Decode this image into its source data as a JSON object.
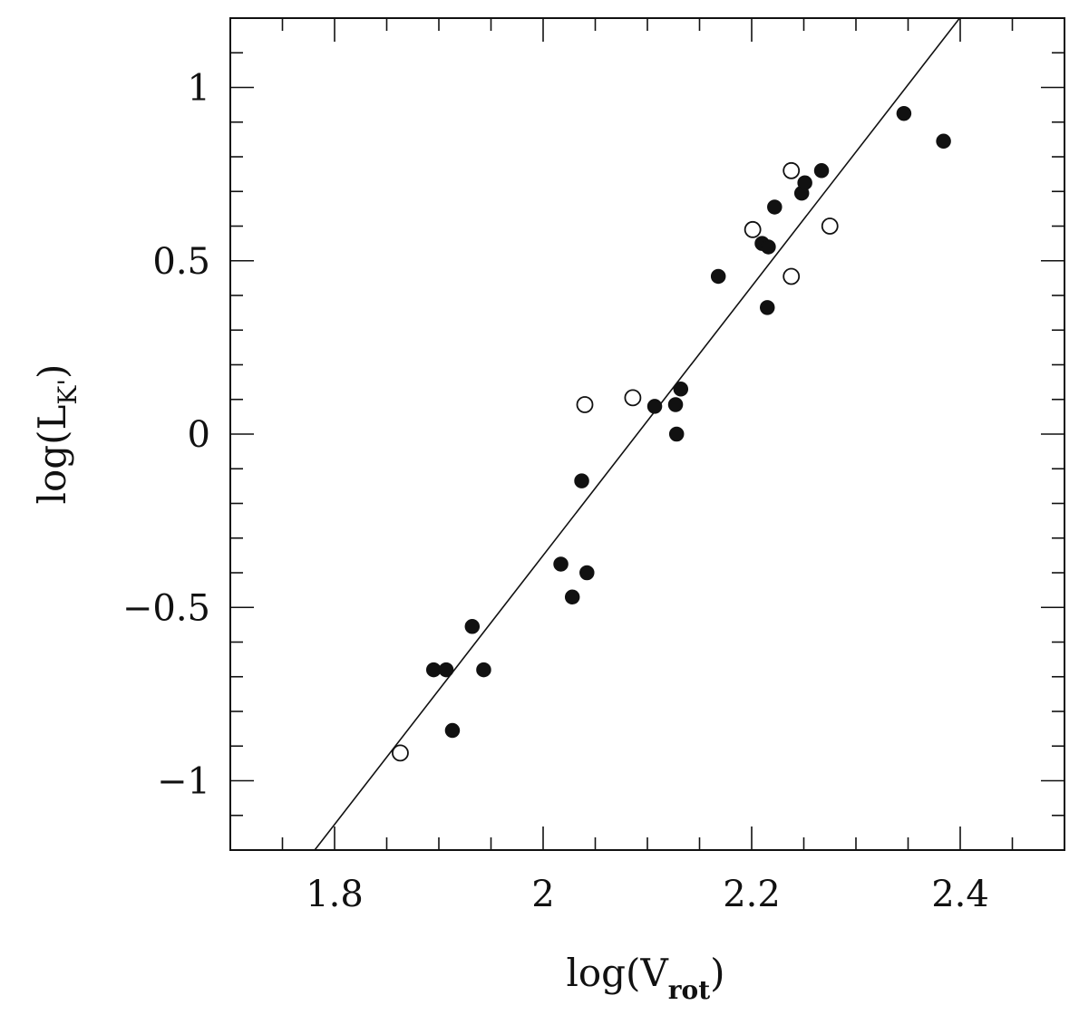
{
  "chart_data": {
    "type": "scatter",
    "title": "",
    "xlabel": {
      "base": "log(V",
      "sub": "rot",
      "close": ")"
    },
    "ylabel": {
      "base": "log(L",
      "sub": "K'",
      "close": ")"
    },
    "xlim": [
      1.7,
      2.5
    ],
    "ylim": [
      -1.2,
      1.2
    ],
    "x_tick_labels": [
      {
        "value": 1.8,
        "label": "1.8"
      },
      {
        "value": 2.0,
        "label": "2"
      },
      {
        "value": 2.2,
        "label": "2.2"
      },
      {
        "value": 2.4,
        "label": "2.4"
      }
    ],
    "y_tick_labels": [
      {
        "value": 1.0,
        "label": "1"
      },
      {
        "value": 0.5,
        "label": "0.5"
      },
      {
        "value": 0.0,
        "label": "0"
      },
      {
        "value": -0.5,
        "label": "−0.5"
      },
      {
        "value": -1.0,
        "label": "−1"
      }
    ],
    "x_minor_step": 0.05,
    "y_minor_step": 0.1,
    "grid": false,
    "legend": "none",
    "series": [
      {
        "marker": "filled-circle",
        "points": [
          [
            1.895,
            -0.68
          ],
          [
            1.907,
            -0.68
          ],
          [
            1.913,
            -0.855
          ],
          [
            1.932,
            -0.555
          ],
          [
            1.943,
            -0.68
          ],
          [
            2.017,
            -0.375
          ],
          [
            2.028,
            -0.47
          ],
          [
            2.037,
            -0.135
          ],
          [
            2.042,
            -0.4
          ],
          [
            2.107,
            0.08
          ],
          [
            2.127,
            0.085
          ],
          [
            2.128,
            0.0
          ],
          [
            2.132,
            0.13
          ],
          [
            2.168,
            0.455
          ],
          [
            2.21,
            0.55
          ],
          [
            2.215,
            0.365
          ],
          [
            2.216,
            0.54
          ],
          [
            2.222,
            0.655
          ],
          [
            2.248,
            0.695
          ],
          [
            2.251,
            0.725
          ],
          [
            2.267,
            0.76
          ],
          [
            2.346,
            0.925
          ],
          [
            2.384,
            0.845
          ]
        ]
      },
      {
        "marker": "open-circle",
        "points": [
          [
            1.863,
            -0.92
          ],
          [
            2.04,
            0.085
          ],
          [
            2.086,
            0.105
          ],
          [
            2.201,
            0.59
          ],
          [
            2.238,
            0.76
          ],
          [
            2.238,
            0.455
          ],
          [
            2.275,
            0.6
          ]
        ]
      }
    ],
    "fit_line": {
      "slope": 3.88,
      "intercept": -8.11
    },
    "colors": {
      "axis": "#111111",
      "marker": "#111111",
      "background": "#ffffff"
    }
  }
}
